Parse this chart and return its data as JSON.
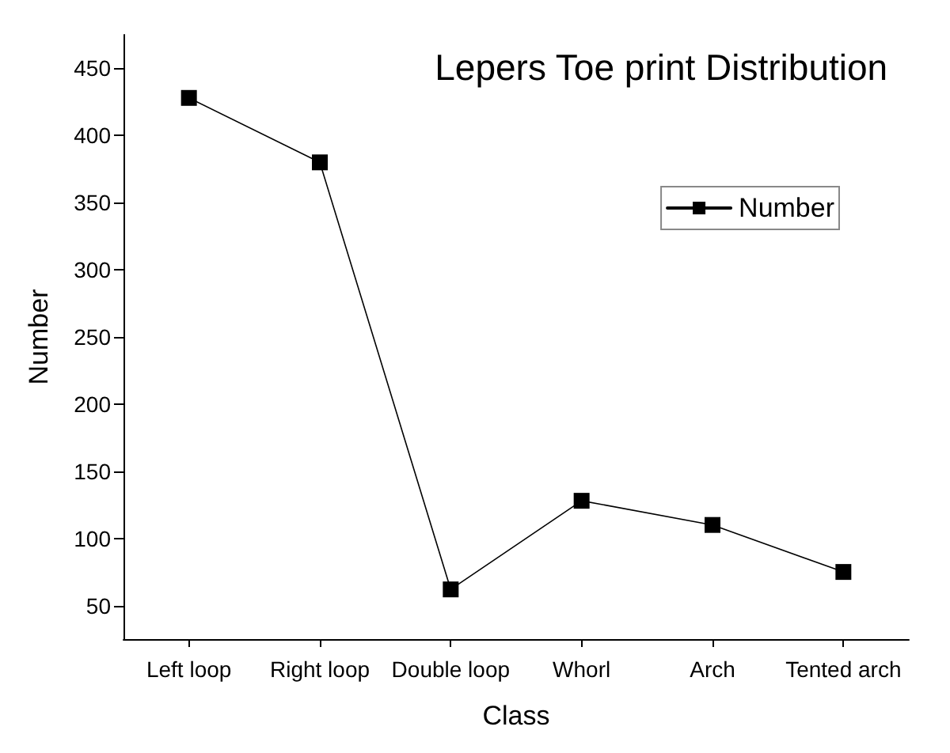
{
  "chart_data": {
    "type": "line",
    "title": "Lepers Toe print Distribution",
    "xlabel": "Class",
    "ylabel": "Number",
    "categories": [
      "Left loop",
      "Right loop",
      "Double loop",
      "Whorl",
      "Arch",
      "Tented arch"
    ],
    "series": [
      {
        "name": "Number",
        "color": "#000000",
        "values": [
          428,
          380,
          62,
          128,
          110,
          75
        ]
      }
    ],
    "ylim": [
      25,
      475
    ],
    "yticks": [
      50,
      100,
      150,
      200,
      250,
      300,
      350,
      400,
      450
    ],
    "grid": false,
    "legend": "top right",
    "marker": "square",
    "line_style": "solid"
  }
}
